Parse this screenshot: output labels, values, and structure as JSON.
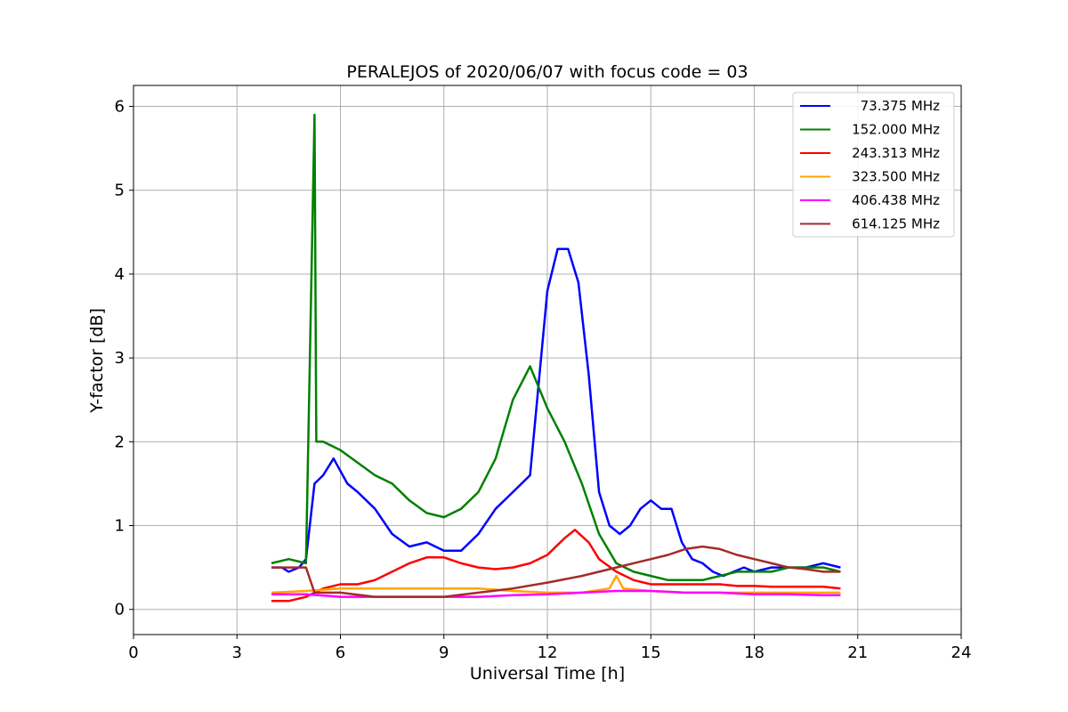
{
  "chart_data": {
    "type": "line",
    "title": "PERALEJOS of 2020/06/07 with focus code = 03",
    "xlabel": "Universal Time [h]",
    "ylabel": "Y-factor [dB]",
    "xlim": [
      0,
      24
    ],
    "ylim": [
      -0.3,
      6.25
    ],
    "xticks": [
      "0",
      "3",
      "6",
      "9",
      "12",
      "15",
      "18",
      "21",
      "24"
    ],
    "yticks": [
      "0",
      "1",
      "2",
      "3",
      "4",
      "5",
      "6"
    ],
    "grid": true,
    "legend_position": "top-right",
    "series": [
      {
        "name": "73.375 MHz",
        "color": "#0000ff",
        "x": [
          4.0,
          4.3,
          4.5,
          4.8,
          5.0,
          5.25,
          5.5,
          5.8,
          6.2,
          6.5,
          7.0,
          7.5,
          8.0,
          8.5,
          9.0,
          9.5,
          10.0,
          10.5,
          11.0,
          11.5,
          12.0,
          12.3,
          12.6,
          12.9,
          13.2,
          13.5,
          13.8,
          14.1,
          14.4,
          14.7,
          15.0,
          15.3,
          15.6,
          15.9,
          16.2,
          16.5,
          16.8,
          17.1,
          17.4,
          17.7,
          18.0,
          18.5,
          19.0,
          19.5,
          20.0,
          20.5
        ],
        "y": [
          0.5,
          0.5,
          0.45,
          0.5,
          0.6,
          1.5,
          1.6,
          1.8,
          1.5,
          1.4,
          1.2,
          0.9,
          0.75,
          0.8,
          0.7,
          0.7,
          0.9,
          1.2,
          1.4,
          1.6,
          3.8,
          4.3,
          4.3,
          3.9,
          2.8,
          1.4,
          1.0,
          0.9,
          1.0,
          1.2,
          1.3,
          1.2,
          1.2,
          0.8,
          0.6,
          0.55,
          0.45,
          0.4,
          0.45,
          0.5,
          0.45,
          0.5,
          0.5,
          0.5,
          0.55,
          0.5
        ]
      },
      {
        "name": "152.000 MHz",
        "color": "#008000",
        "x": [
          4.0,
          4.5,
          5.0,
          5.25,
          5.3,
          5.5,
          6.0,
          6.5,
          7.0,
          7.5,
          8.0,
          8.5,
          9.0,
          9.5,
          10.0,
          10.5,
          11.0,
          11.5,
          12.0,
          12.5,
          13.0,
          13.5,
          14.0,
          14.5,
          15.0,
          15.5,
          16.0,
          16.5,
          17.0,
          17.5,
          18.0,
          18.5,
          19.0,
          19.5,
          20.0,
          20.5
        ],
        "y": [
          0.55,
          0.6,
          0.55,
          5.9,
          2.0,
          2.0,
          1.9,
          1.75,
          1.6,
          1.5,
          1.3,
          1.15,
          1.1,
          1.2,
          1.4,
          1.8,
          2.5,
          2.9,
          2.4,
          2.0,
          1.5,
          0.9,
          0.55,
          0.45,
          0.4,
          0.35,
          0.35,
          0.35,
          0.4,
          0.45,
          0.45,
          0.45,
          0.5,
          0.5,
          0.5,
          0.45
        ]
      },
      {
        "name": "243.313 MHz",
        "color": "#ff0000",
        "x": [
          4.0,
          4.5,
          5.0,
          5.5,
          6.0,
          6.5,
          7.0,
          7.5,
          8.0,
          8.5,
          9.0,
          9.5,
          10.0,
          10.5,
          11.0,
          11.5,
          12.0,
          12.5,
          12.8,
          13.2,
          13.5,
          14.0,
          14.5,
          15.0,
          15.5,
          16.0,
          16.5,
          17.0,
          17.5,
          18.0,
          18.5,
          19.0,
          19.5,
          20.0,
          20.5
        ],
        "y": [
          0.1,
          0.1,
          0.15,
          0.25,
          0.3,
          0.3,
          0.35,
          0.45,
          0.55,
          0.62,
          0.62,
          0.55,
          0.5,
          0.48,
          0.5,
          0.55,
          0.65,
          0.85,
          0.95,
          0.8,
          0.6,
          0.45,
          0.35,
          0.3,
          0.3,
          0.3,
          0.3,
          0.3,
          0.28,
          0.28,
          0.27,
          0.27,
          0.27,
          0.27,
          0.25
        ]
      },
      {
        "name": "323.500 MHz",
        "color": "#ffa500",
        "x": [
          4.0,
          5.0,
          6.0,
          7.0,
          8.0,
          9.0,
          10.0,
          11.0,
          12.0,
          13.0,
          13.8,
          14.0,
          14.2,
          15.0,
          16.0,
          17.0,
          18.0,
          19.0,
          20.0,
          20.5
        ],
        "y": [
          0.2,
          0.22,
          0.25,
          0.25,
          0.25,
          0.25,
          0.25,
          0.22,
          0.2,
          0.2,
          0.25,
          0.4,
          0.25,
          0.22,
          0.2,
          0.2,
          0.2,
          0.2,
          0.2,
          0.2
        ]
      },
      {
        "name": "406.438 MHz",
        "color": "#ff00ff",
        "x": [
          4.0,
          5.0,
          6.0,
          7.0,
          8.0,
          9.0,
          10.0,
          11.0,
          12.0,
          13.0,
          14.0,
          15.0,
          16.0,
          17.0,
          18.0,
          19.0,
          20.0,
          20.5
        ],
        "y": [
          0.18,
          0.18,
          0.15,
          0.15,
          0.15,
          0.15,
          0.15,
          0.17,
          0.18,
          0.2,
          0.22,
          0.22,
          0.2,
          0.2,
          0.18,
          0.18,
          0.17,
          0.17
        ]
      },
      {
        "name": "614.125 MHz",
        "color": "#a52a2a",
        "x": [
          4.0,
          4.5,
          5.0,
          5.25,
          5.5,
          6.0,
          7.0,
          8.0,
          9.0,
          10.0,
          11.0,
          12.0,
          13.0,
          14.0,
          15.0,
          15.5,
          16.0,
          16.5,
          17.0,
          17.5,
          18.0,
          18.5,
          19.0,
          19.5,
          20.0,
          20.5
        ],
        "y": [
          0.5,
          0.5,
          0.5,
          0.2,
          0.2,
          0.2,
          0.15,
          0.15,
          0.15,
          0.2,
          0.25,
          0.32,
          0.4,
          0.5,
          0.6,
          0.65,
          0.72,
          0.75,
          0.72,
          0.65,
          0.6,
          0.55,
          0.5,
          0.48,
          0.45,
          0.45
        ]
      }
    ]
  }
}
